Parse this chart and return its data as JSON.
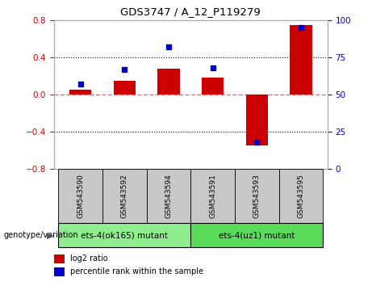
{
  "title": "GDS3747 / A_12_P119279",
  "categories": [
    "GSM543590",
    "GSM543592",
    "GSM543594",
    "GSM543591",
    "GSM543593",
    "GSM543595"
  ],
  "log2_ratio": [
    0.05,
    0.15,
    0.28,
    0.18,
    -0.55,
    0.75
  ],
  "percentile_rank": [
    57,
    67,
    82,
    68,
    18,
    95
  ],
  "ylim_left": [
    -0.8,
    0.8
  ],
  "ylim_right": [
    0,
    100
  ],
  "bar_color": "#cc0000",
  "dot_color": "#0000cc",
  "bg_color_plot": "#ffffff",
  "bg_color_label": "#c8c8c8",
  "genotype_groups": [
    {
      "label": "ets-4(ok165) mutant",
      "indices": [
        0,
        1,
        2
      ],
      "color": "#90ee90"
    },
    {
      "label": "ets-4(uz1) mutant",
      "indices": [
        3,
        4,
        5
      ],
      "color": "#5adc5a"
    }
  ],
  "legend_log2": "log2 ratio",
  "legend_pct": "percentile rank within the sample",
  "genotype_label": "genotype/variation",
  "zero_line_color": "#ff6666",
  "yticks_left": [
    -0.8,
    -0.4,
    0,
    0.4,
    0.8
  ],
  "yticks_right": [
    0,
    25,
    50,
    75,
    100
  ]
}
